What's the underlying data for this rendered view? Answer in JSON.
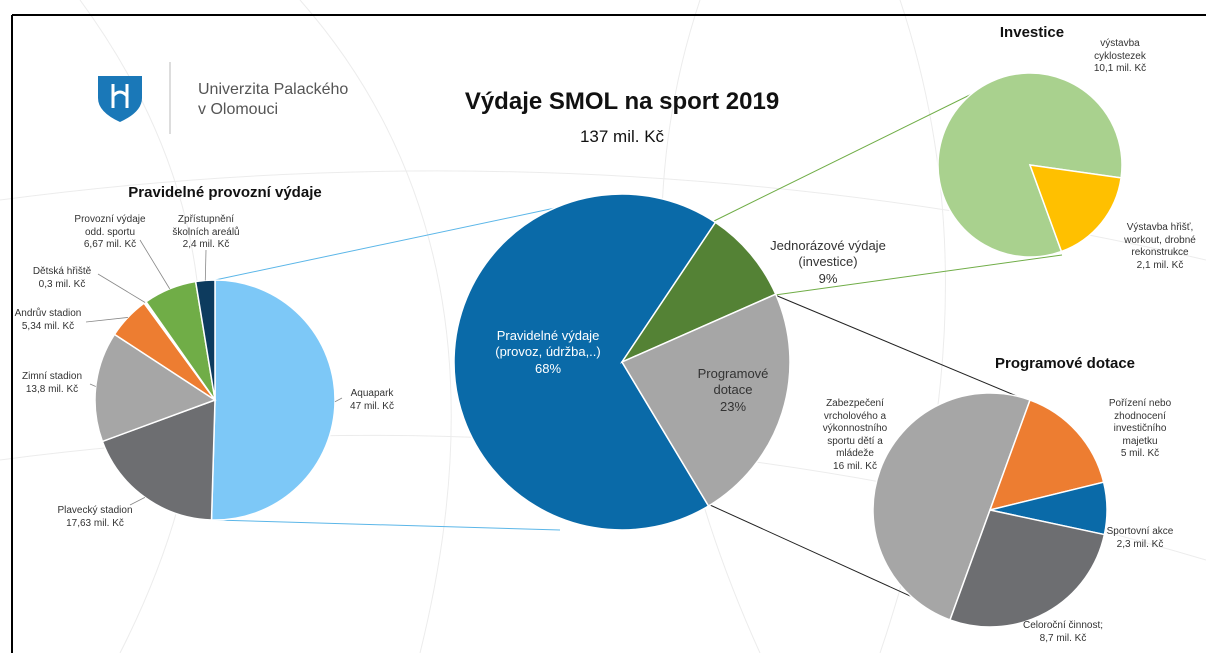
{
  "logo": [
    "Univerzita Palackého",
    "v Olomouci"
  ],
  "chart_data": [
    {
      "type": "pie",
      "title": "Výdaje SMOL na sport 2019",
      "subtitle": "137 mil. Kč",
      "categories": [
        "Pravidelné výdaje (provoz, údržba,..)",
        "Jednorázové výdaje (investice)",
        "Programové dotace"
      ],
      "values": [
        68,
        9,
        23
      ],
      "value_labels": [
        "68%",
        "9%",
        "23%"
      ],
      "colors": [
        "#0a6aa8",
        "#548235",
        "#a6a6a6"
      ]
    },
    {
      "type": "pie",
      "title": "Pravidelné provozní výdaje",
      "categories": [
        "Aquapark",
        "Plavecký stadion",
        "Zimní stadion",
        "Andrův stadion",
        "Dětská hřiště",
        "Provozní výdaje odd. sportu",
        "Zpřístupnění školních areálů"
      ],
      "values": [
        47,
        17.63,
        13.8,
        5.34,
        0.3,
        6.67,
        2.4
      ],
      "value_labels": [
        "47 mil. Kč",
        "17,63 mil. Kč",
        "13,8 mil. Kč",
        "5,34 mil. Kč",
        "0,3 mil. Kč",
        "6,67 mil. Kč",
        "2,4 mil. Kč"
      ],
      "colors": [
        "#7dc8f7",
        "#6d6e71",
        "#a6a6a6",
        "#ed7d31",
        "#ffffff",
        "#70ad47",
        "#0d3b5e"
      ]
    },
    {
      "type": "pie",
      "title": "Investice",
      "categories": [
        "výstavba cyklostezek",
        "Výstavba hřišť, workout, drobné rekonstrukce"
      ],
      "values": [
        10.1,
        2.1
      ],
      "value_labels": [
        "10,1 mil. Kč",
        "2,1 mil. Kč"
      ],
      "colors": [
        "#a9d18e",
        "#ffc000"
      ]
    },
    {
      "type": "pie",
      "title": "Programové dotace",
      "categories": [
        "Zabezpečení vrcholového a výkonnostního sportu dětí a mládeže",
        "Pořízení nebo zhodnocení investičního majetku",
        "Sportovní akce",
        "Celoroční činnost;"
      ],
      "values": [
        16,
        5,
        2.3,
        8.7
      ],
      "value_labels": [
        "16 mil. Kč",
        "5 mil. Kč",
        "2,3 mil. Kč",
        "8,7 mil. Kč"
      ],
      "colors": [
        "#a6a6a6",
        "#ed7d31",
        "#0a6aa8",
        "#6d6e71"
      ]
    }
  ]
}
